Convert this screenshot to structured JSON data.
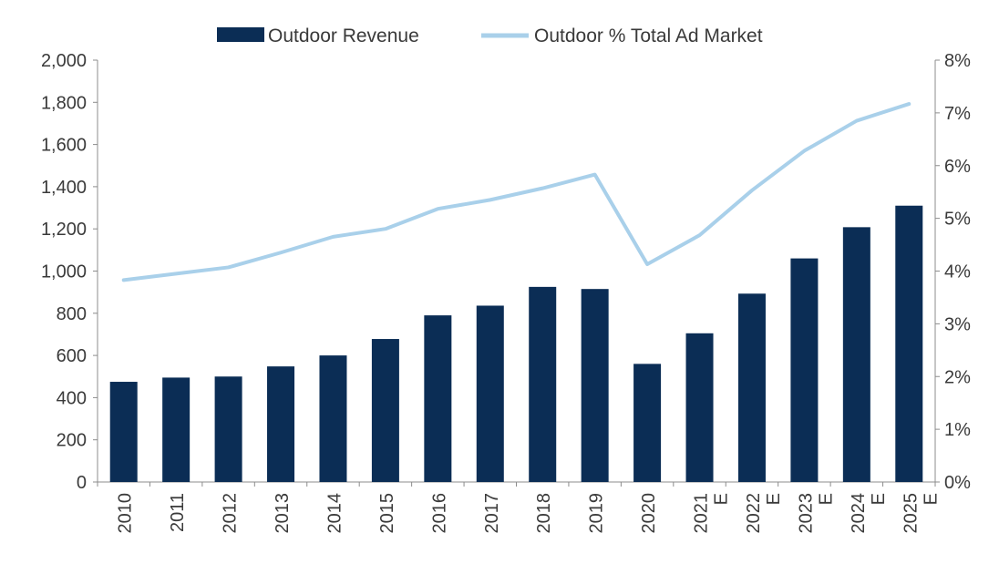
{
  "chart_data": {
    "type": "bar",
    "title": "",
    "xlabel": "",
    "ylabel": "",
    "categories": [
      [
        "2010"
      ],
      [
        "2011"
      ],
      [
        "2012"
      ],
      [
        "2013"
      ],
      [
        "2014"
      ],
      [
        "2015"
      ],
      [
        "2016"
      ],
      [
        "2017"
      ],
      [
        "2018"
      ],
      [
        "2019"
      ],
      [
        "2020"
      ],
      [
        "2021",
        "E"
      ],
      [
        "2022",
        "E"
      ],
      [
        "2023",
        "E"
      ],
      [
        "2024",
        "E"
      ],
      [
        "2025",
        "E"
      ]
    ],
    "series": [
      {
        "name": "Outdoor Revenue",
        "type": "bar",
        "axis": "left",
        "color": "#0b2d55",
        "values": [
          475,
          495,
          500,
          548,
          600,
          678,
          790,
          836,
          925,
          915,
          560,
          705,
          893,
          1060,
          1208,
          1310
        ]
      },
      {
        "name": "Outdoor % Total Ad Market",
        "type": "line",
        "axis": "right",
        "color": "#a9d0ea",
        "values": [
          3.83,
          3.95,
          4.07,
          4.35,
          4.65,
          4.8,
          5.18,
          5.35,
          5.57,
          5.83,
          4.13,
          4.68,
          5.53,
          6.28,
          6.85,
          7.17
        ]
      }
    ],
    "left_axis": {
      "ylim": [
        0,
        2000
      ],
      "ticks": [
        0,
        200,
        400,
        600,
        800,
        1000,
        1200,
        1400,
        1600,
        1800,
        2000
      ],
      "tick_labels": [
        "0",
        "200",
        "400",
        "600",
        "800",
        "1,000",
        "1,200",
        "1,400",
        "1,600",
        "1,800",
        "2,000"
      ]
    },
    "right_axis": {
      "ylim": [
        0,
        8
      ],
      "ticks": [
        0,
        1,
        2,
        3,
        4,
        5,
        6,
        7,
        8
      ],
      "tick_labels": [
        "0%",
        "1%",
        "2%",
        "3%",
        "4%",
        "5%",
        "6%",
        "7%",
        "8%"
      ]
    },
    "legend": {
      "position": "top-center",
      "entries": [
        "Outdoor Revenue",
        "Outdoor % Total Ad Market"
      ]
    },
    "grid": false,
    "axis_color": "#8c8c8c"
  }
}
